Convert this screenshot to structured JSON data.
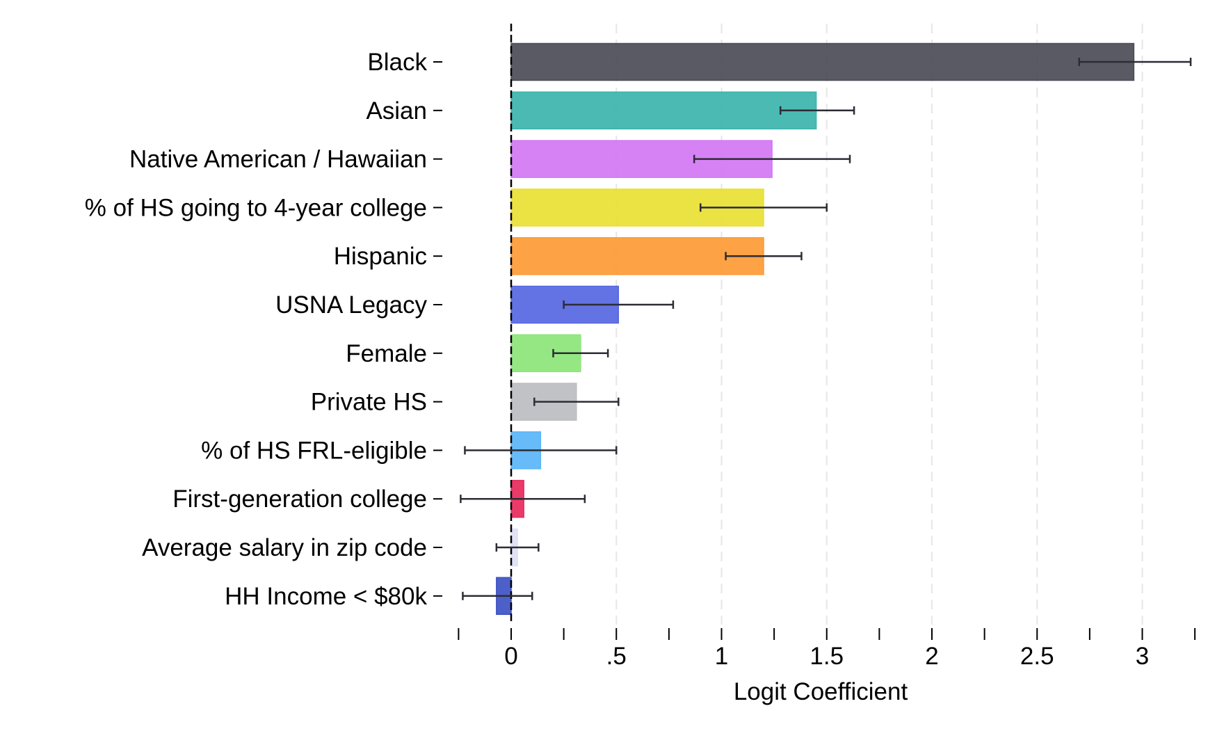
{
  "chart_data": {
    "type": "bar",
    "orientation": "horizontal",
    "title": "",
    "xlabel": "Logit Coefficient",
    "ylabel": "",
    "xlim": [
      -0.25,
      3.25
    ],
    "xticks": [
      0,
      0.5,
      1,
      1.5,
      2,
      2.5,
      3
    ],
    "xtick_labels": [
      "0",
      ".5",
      "1",
      "1.5",
      "2",
      "2.5",
      "3"
    ],
    "xticks_minor": [
      -0.25,
      0.25,
      0.75,
      1.25,
      1.75,
      2.25,
      2.75,
      3.25
    ],
    "gridlines": "vertical dashed",
    "zero_line": "dashed",
    "categories": [
      "Black",
      "Asian",
      "Native American / Hawaiian",
      "% of HS going to 4-year college",
      "Hispanic",
      "USNA Legacy",
      "Female",
      "Private HS",
      "% of HS FRL-eligible",
      "First-generation college",
      "Average salary in zip code",
      "HH Income < $80k"
    ],
    "values": [
      2.96,
      1.45,
      1.24,
      1.2,
      1.2,
      0.51,
      0.33,
      0.31,
      0.14,
      0.06,
      0.03,
      -0.07
    ],
    "ci_lower": [
      2.7,
      1.28,
      0.87,
      0.9,
      1.02,
      0.25,
      0.2,
      0.11,
      -0.22,
      -0.24,
      -0.07,
      -0.23
    ],
    "ci_upper": [
      3.23,
      1.63,
      1.61,
      1.5,
      1.38,
      0.77,
      0.46,
      0.51,
      0.5,
      0.35,
      0.13,
      0.1
    ],
    "colors": [
      "#4b4c57",
      "#3bb4ac",
      "#d277f4",
      "#e9df33",
      "#fd9a35",
      "#5667e1",
      "#8ce57a",
      "#bcbdc1",
      "#5ab5f7",
      "#e8295c",
      "#dee0f4",
      "#3e51c3"
    ]
  }
}
